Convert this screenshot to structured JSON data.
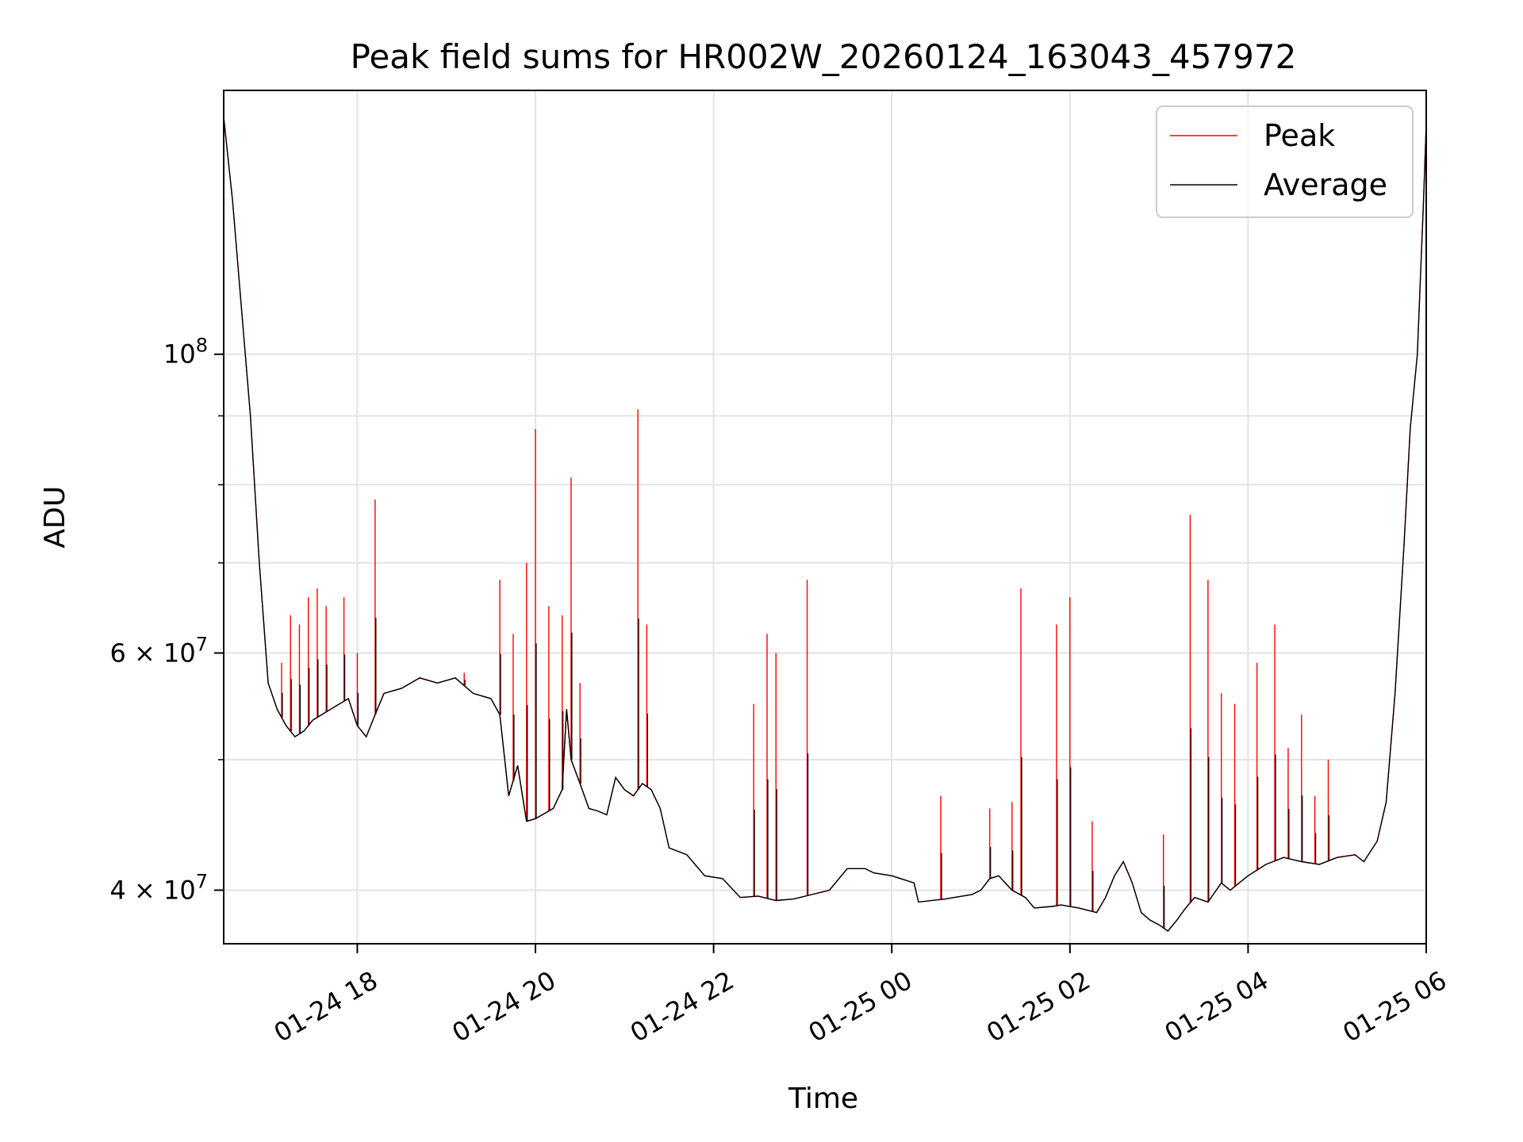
{
  "chart_data": {
    "type": "line",
    "title": "Peak field sums for HR002W_20260124_163043_457972",
    "xlabel": "Time",
    "ylabel": "ADU",
    "yscale": "log",
    "ylim": [
      36500000,
      157000000
    ],
    "xlim_hours": [
      16.5,
      30.0
    ],
    "grid": true,
    "legend_position": "top-right",
    "x_ticks": [
      {
        "hour": 18,
        "label": "01-24 18"
      },
      {
        "hour": 20,
        "label": "01-24 20"
      },
      {
        "hour": 22,
        "label": "01-24 22"
      },
      {
        "hour": 24,
        "label": "01-25 00"
      },
      {
        "hour": 26,
        "label": "01-25 02"
      },
      {
        "hour": 28,
        "label": "01-25 04"
      },
      {
        "hour": 30,
        "label": "01-25 06"
      }
    ],
    "y_ticks": [
      {
        "value": 100000000,
        "base": "10",
        "exp": "8"
      },
      {
        "value": 60000000,
        "base": "6 × 10",
        "exp": "7"
      },
      {
        "value": 40000000,
        "base": "4 × 10",
        "exp": "7"
      }
    ],
    "y_minor_ticks": [
      50000000,
      70000000,
      80000000,
      90000000
    ],
    "series": [
      {
        "name": "Peak",
        "color": "#ff0000"
      },
      {
        "name": "Average",
        "color": "#000000"
      }
    ],
    "average_points": [
      [
        16.5,
        150000000
      ],
      [
        16.6,
        130000000
      ],
      [
        16.7,
        108000000
      ],
      [
        16.8,
        90000000
      ],
      [
        16.9,
        70000000
      ],
      [
        17.0,
        57000000
      ],
      [
        17.1,
        54500000
      ],
      [
        17.2,
        53000000
      ],
      [
        17.3,
        52000000
      ],
      [
        17.4,
        52500000
      ],
      [
        17.5,
        53500000
      ],
      [
        17.7,
        54500000
      ],
      [
        17.9,
        55500000
      ],
      [
        18.0,
        53000000
      ],
      [
        18.1,
        52000000
      ],
      [
        18.2,
        54000000
      ],
      [
        18.3,
        56000000
      ],
      [
        18.5,
        56500000
      ],
      [
        18.7,
        57500000
      ],
      [
        18.9,
        57000000
      ],
      [
        19.1,
        57500000
      ],
      [
        19.3,
        56000000
      ],
      [
        19.5,
        55500000
      ],
      [
        19.6,
        54000000
      ],
      [
        19.7,
        47000000
      ],
      [
        19.8,
        49500000
      ],
      [
        19.9,
        45000000
      ],
      [
        20.0,
        45200000
      ],
      [
        20.2,
        46000000
      ],
      [
        20.3,
        47500000
      ],
      [
        20.35,
        54500000
      ],
      [
        20.4,
        50000000
      ],
      [
        20.5,
        48000000
      ],
      [
        20.6,
        46000000
      ],
      [
        20.7,
        45800000
      ],
      [
        20.8,
        45500000
      ],
      [
        20.9,
        48500000
      ],
      [
        21.0,
        47500000
      ],
      [
        21.1,
        47000000
      ],
      [
        21.2,
        48000000
      ],
      [
        21.3,
        47500000
      ],
      [
        21.4,
        46000000
      ],
      [
        21.5,
        43000000
      ],
      [
        21.7,
        42500000
      ],
      [
        21.9,
        41000000
      ],
      [
        22.1,
        40800000
      ],
      [
        22.3,
        39500000
      ],
      [
        22.5,
        39600000
      ],
      [
        22.7,
        39300000
      ],
      [
        22.9,
        39400000
      ],
      [
        23.1,
        39700000
      ],
      [
        23.3,
        40000000
      ],
      [
        23.5,
        41500000
      ],
      [
        23.7,
        41500000
      ],
      [
        23.8,
        41200000
      ],
      [
        24.0,
        41000000
      ],
      [
        24.25,
        40500000
      ],
      [
        24.3,
        39200000
      ],
      [
        24.6,
        39400000
      ],
      [
        24.9,
        39700000
      ],
      [
        25.0,
        40000000
      ],
      [
        25.1,
        40800000
      ],
      [
        25.2,
        41000000
      ],
      [
        25.35,
        40000000
      ],
      [
        25.5,
        39500000
      ],
      [
        25.6,
        38800000
      ],
      [
        25.8,
        38900000
      ],
      [
        25.9,
        39000000
      ],
      [
        26.1,
        38800000
      ],
      [
        26.3,
        38500000
      ],
      [
        26.4,
        39500000
      ],
      [
        26.5,
        41000000
      ],
      [
        26.6,
        42000000
      ],
      [
        26.7,
        40500000
      ],
      [
        26.8,
        38500000
      ],
      [
        26.9,
        38000000
      ],
      [
        27.0,
        37700000
      ],
      [
        27.1,
        37300000
      ],
      [
        27.2,
        38000000
      ],
      [
        27.3,
        38800000
      ],
      [
        27.4,
        39500000
      ],
      [
        27.55,
        39200000
      ],
      [
        27.7,
        40500000
      ],
      [
        27.8,
        40000000
      ],
      [
        27.9,
        40500000
      ],
      [
        28.0,
        41000000
      ],
      [
        28.2,
        41800000
      ],
      [
        28.4,
        42300000
      ],
      [
        28.6,
        42000000
      ],
      [
        28.8,
        41800000
      ],
      [
        29.0,
        42300000
      ],
      [
        29.2,
        42500000
      ],
      [
        29.3,
        42000000
      ],
      [
        29.45,
        43500000
      ],
      [
        29.55,
        46500000
      ],
      [
        29.65,
        56000000
      ],
      [
        29.75,
        72000000
      ],
      [
        29.82,
        88000000
      ],
      [
        29.9,
        100000000
      ],
      [
        29.97,
        130000000
      ],
      [
        30.0,
        148000000
      ]
    ],
    "peak_spikes": [
      [
        17.15,
        59000000
      ],
      [
        17.25,
        64000000
      ],
      [
        17.35,
        63000000
      ],
      [
        17.45,
        66000000
      ],
      [
        17.55,
        67000000
      ],
      [
        17.65,
        65000000
      ],
      [
        17.85,
        66000000
      ],
      [
        18.0,
        60000000
      ],
      [
        18.2,
        78000000
      ],
      [
        19.2,
        58000000
      ],
      [
        19.6,
        68000000
      ],
      [
        19.75,
        62000000
      ],
      [
        19.9,
        70000000
      ],
      [
        20.0,
        88000000
      ],
      [
        20.15,
        65000000
      ],
      [
        20.3,
        64000000
      ],
      [
        20.4,
        81000000
      ],
      [
        20.5,
        57000000
      ],
      [
        21.15,
        91000000
      ],
      [
        21.25,
        63000000
      ],
      [
        22.45,
        55000000
      ],
      [
        22.6,
        62000000
      ],
      [
        22.7,
        60000000
      ],
      [
        23.05,
        68000000
      ],
      [
        24.55,
        47000000
      ],
      [
        25.1,
        46000000
      ],
      [
        25.35,
        46500000
      ],
      [
        25.45,
        67000000
      ],
      [
        25.85,
        63000000
      ],
      [
        26.0,
        66000000
      ],
      [
        26.25,
        45000000
      ],
      [
        27.05,
        44000000
      ],
      [
        27.35,
        76000000
      ],
      [
        27.55,
        68000000
      ],
      [
        27.7,
        56000000
      ],
      [
        27.85,
        55000000
      ],
      [
        28.1,
        59000000
      ],
      [
        28.3,
        63000000
      ],
      [
        28.45,
        51000000
      ],
      [
        28.6,
        54000000
      ],
      [
        28.75,
        47000000
      ],
      [
        28.9,
        50000000
      ]
    ]
  }
}
